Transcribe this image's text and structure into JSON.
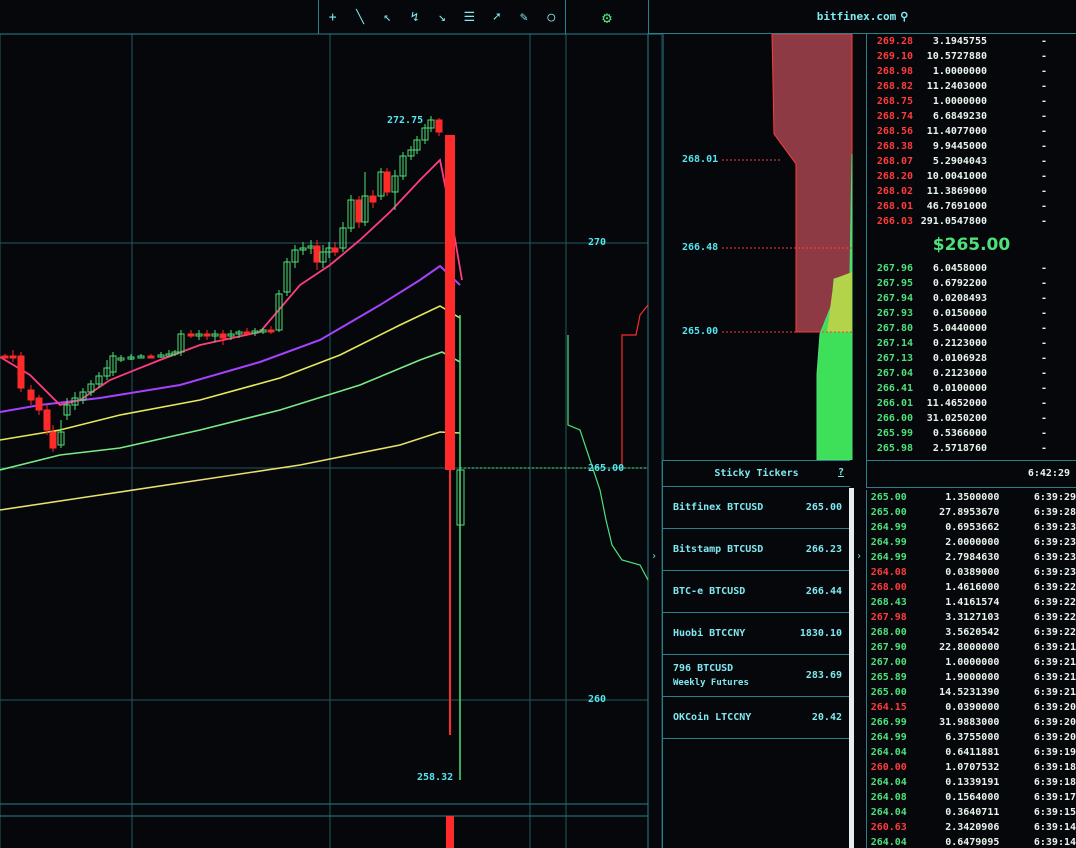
{
  "toolbar": {
    "tools": [
      {
        "name": "crosshair-tool-icon",
        "glyph": "+"
      },
      {
        "name": "line-tool-icon",
        "glyph": "╲"
      },
      {
        "name": "arrow-tool-icon",
        "glyph": "↖"
      },
      {
        "name": "path-tool-icon",
        "glyph": "↯"
      },
      {
        "name": "down-arrow-tool-icon",
        "glyph": "↘"
      },
      {
        "name": "fibonacci-tool-icon",
        "glyph": "☰"
      },
      {
        "name": "pointer-tool-icon",
        "glyph": "➚"
      },
      {
        "name": "brush-tool-icon",
        "glyph": "✎"
      },
      {
        "name": "circle-tool-icon",
        "glyph": "○"
      }
    ],
    "settings_glyph": "⚙"
  },
  "site_title": "bitfinex.com",
  "chart": {
    "price_labels": {
      "high": "272.75",
      "low": "258.32",
      "p270": "270",
      "p265": "265.00",
      "p260": "260"
    }
  },
  "depth": {
    "labels": [
      "268.01",
      "266.48",
      "265.00"
    ]
  },
  "sticky": {
    "title": "Sticky Tickers",
    "help": "?",
    "tickers": [
      {
        "name": "Bitfinex BTCUSD",
        "sub": "",
        "price": "265.00"
      },
      {
        "name": "Bitstamp BTCUSD",
        "sub": "",
        "price": "266.23"
      },
      {
        "name": "BTC-e BTCUSD",
        "sub": "",
        "price": "266.44"
      },
      {
        "name": "Huobi BTCCNY",
        "sub": "",
        "price": "1830.10"
      },
      {
        "name": "796 BTCUSD",
        "sub": "Weekly Futures",
        "price": "283.69"
      },
      {
        "name": "OKCoin LTCCNY",
        "sub": "",
        "price": "20.42"
      }
    ]
  },
  "orderbook": {
    "asks": [
      {
        "price": "269.28",
        "amount": "3.1945755",
        "total": "-"
      },
      {
        "price": "269.10",
        "amount": "10.5727880",
        "total": "-"
      },
      {
        "price": "268.98",
        "amount": "1.0000000",
        "total": "-"
      },
      {
        "price": "268.82",
        "amount": "11.2403000",
        "total": "-"
      },
      {
        "price": "268.75",
        "amount": "1.0000000",
        "total": "-"
      },
      {
        "price": "268.74",
        "amount": "6.6849230",
        "total": "-"
      },
      {
        "price": "268.56",
        "amount": "11.4077000",
        "total": "-"
      },
      {
        "price": "268.38",
        "amount": "9.9445000",
        "total": "-"
      },
      {
        "price": "268.07",
        "amount": "5.2904043",
        "total": "-"
      },
      {
        "price": "268.20",
        "amount": "10.0041000",
        "total": "-"
      },
      {
        "price": "268.02",
        "amount": "11.3869000",
        "total": "-"
      },
      {
        "price": "268.01",
        "amount": "46.7691000",
        "total": "-"
      },
      {
        "price": "266.03",
        "amount": "291.0547800",
        "total": "-"
      }
    ],
    "last_price": "$265.00",
    "bids": [
      {
        "price": "267.96",
        "amount": "6.0458000",
        "total": "-"
      },
      {
        "price": "267.95",
        "amount": "0.6792200",
        "total": "-"
      },
      {
        "price": "267.94",
        "amount": "0.0208493",
        "total": "-"
      },
      {
        "price": "267.93",
        "amount": "0.0150000",
        "total": "-"
      },
      {
        "price": "267.80",
        "amount": "5.0440000",
        "total": "-"
      },
      {
        "price": "267.14",
        "amount": "0.2123000",
        "total": "-"
      },
      {
        "price": "267.13",
        "amount": "0.0106928",
        "total": "-"
      },
      {
        "price": "267.04",
        "amount": "0.2123000",
        "total": "-"
      },
      {
        "price": "266.41",
        "amount": "0.0100000",
        "total": "-"
      },
      {
        "price": "266.01",
        "amount": "11.4652000",
        "total": "-"
      },
      {
        "price": "266.00",
        "amount": "31.0250200",
        "total": "-"
      },
      {
        "price": "265.99",
        "amount": "0.5366000",
        "total": "-"
      },
      {
        "price": "265.98",
        "amount": "2.5718760",
        "total": "-"
      }
    ]
  },
  "clock": "6:42:29",
  "trades": [
    {
      "price": "265.00",
      "amount": "1.3500000",
      "time": "6:39:29",
      "dir": "up"
    },
    {
      "price": "265.00",
      "amount": "27.8953670",
      "time": "6:39:28",
      "dir": "up"
    },
    {
      "price": "264.99",
      "amount": "0.6953662",
      "time": "6:39:23",
      "dir": "up"
    },
    {
      "price": "264.99",
      "amount": "2.0000000",
      "time": "6:39:23",
      "dir": "up"
    },
    {
      "price": "264.99",
      "amount": "2.7984630",
      "time": "6:39:23",
      "dir": "up"
    },
    {
      "price": "264.08",
      "amount": "0.0389000",
      "time": "6:39:23",
      "dir": "down"
    },
    {
      "price": "268.00",
      "amount": "1.4616000",
      "time": "6:39:22",
      "dir": "down"
    },
    {
      "price": "268.43",
      "amount": "1.4161574",
      "time": "6:39:22",
      "dir": "up"
    },
    {
      "price": "267.98",
      "amount": "3.3127103",
      "time": "6:39:22",
      "dir": "down"
    },
    {
      "price": "268.00",
      "amount": "3.5620542",
      "time": "6:39:22",
      "dir": "up"
    },
    {
      "price": "267.90",
      "amount": "22.8000000",
      "time": "6:39:21",
      "dir": "up"
    },
    {
      "price": "267.00",
      "amount": "1.0000000",
      "time": "6:39:21",
      "dir": "up"
    },
    {
      "price": "265.89",
      "amount": "1.9000000",
      "time": "6:39:21",
      "dir": "up"
    },
    {
      "price": "265.00",
      "amount": "14.5231390",
      "time": "6:39:21",
      "dir": "up"
    },
    {
      "price": "264.15",
      "amount": "0.0390000",
      "time": "6:39:20",
      "dir": "down"
    },
    {
      "price": "266.99",
      "amount": "31.9883000",
      "time": "6:39:20",
      "dir": "up"
    },
    {
      "price": "264.99",
      "amount": "6.3755000",
      "time": "6:39:20",
      "dir": "up"
    },
    {
      "price": "264.04",
      "amount": "0.6411881",
      "time": "6:39:19",
      "dir": "up"
    },
    {
      "price": "260.00",
      "amount": "1.0707532",
      "time": "6:39:18",
      "dir": "down"
    },
    {
      "price": "264.04",
      "amount": "0.1339191",
      "time": "6:39:18",
      "dir": "up"
    },
    {
      "price": "264.08",
      "amount": "0.1564000",
      "time": "6:39:17",
      "dir": "up"
    },
    {
      "price": "264.04",
      "amount": "0.3640711",
      "time": "6:39:15",
      "dir": "up"
    },
    {
      "price": "260.63",
      "amount": "2.3420906",
      "time": "6:39:14",
      "dir": "down"
    },
    {
      "price": "264.04",
      "amount": "0.6479095",
      "time": "6:39:14",
      "dir": "up"
    }
  ],
  "colors": {
    "grid": "#1f5a62",
    "up": "#4fe07a",
    "down": "#ff2a2a",
    "ema_pink": "#ff3d7f",
    "ema_purple": "#a642ff",
    "ema_yellow": "#e8e85a",
    "ema_green": "#7aea84",
    "ema_slow": "#e8e070"
  }
}
